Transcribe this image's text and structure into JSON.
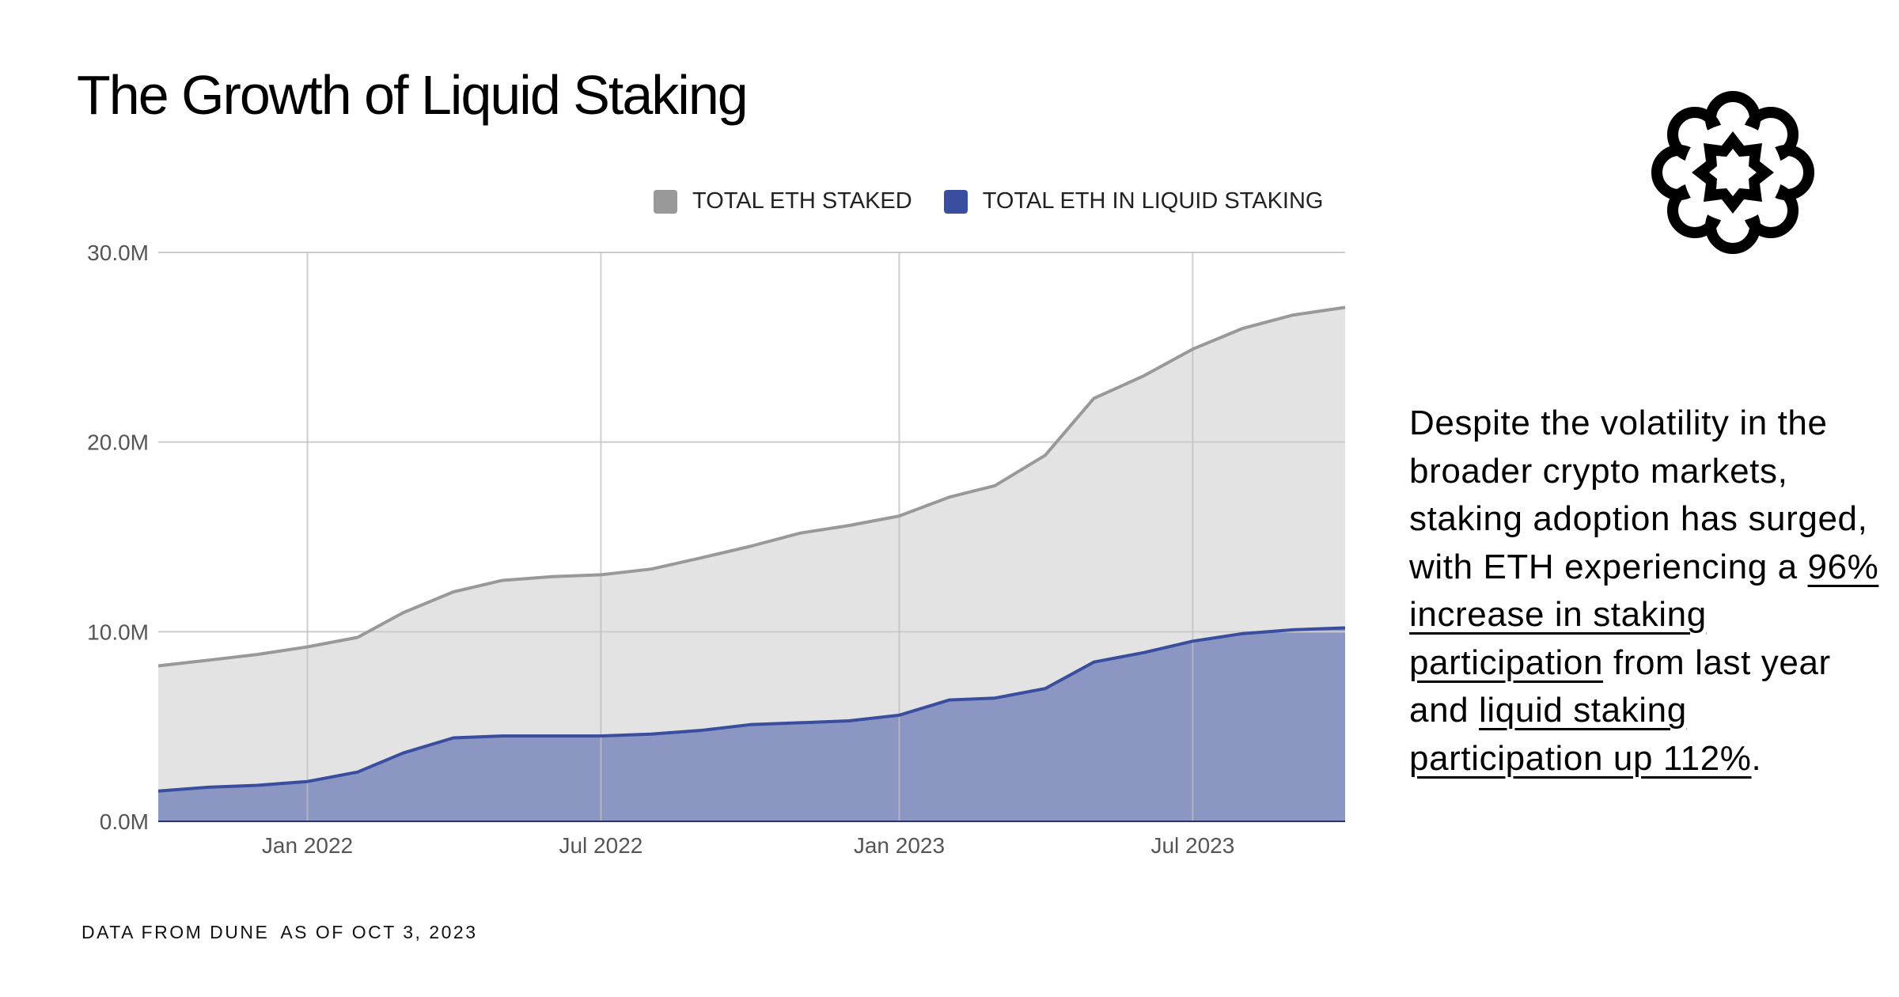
{
  "title": "The Growth of Liquid Staking",
  "logo": {
    "icon": "flower-star-logo-icon"
  },
  "description": {
    "intro": "Despite the volatility in the broader crypto markets, staking adoption has surged, with ETH experiencing a ",
    "link1": "96% increase in staking participation",
    "middle": " from last year and ",
    "link2": "liquid staking participation up 112%",
    "end": "."
  },
  "footnote": {
    "source": "DATA FROM DUNE",
    "date": "AS OF OCT 3, 2023"
  },
  "chart_data": {
    "type": "area",
    "title": "",
    "xlabel": "",
    "ylabel": "",
    "ylim": [
      0,
      30000000
    ],
    "yticks": [
      0,
      10000000,
      20000000,
      30000000
    ],
    "ytick_labels": [
      "0.0M",
      "10.0M",
      "20.0M",
      "30.0M"
    ],
    "xticks": [
      "2022-01-01",
      "2022-07-01",
      "2023-01-01",
      "2023-07-01"
    ],
    "xtick_labels": [
      "Jan 2022",
      "Jul 2022",
      "Jan 2023",
      "Jul 2023"
    ],
    "xlim": [
      "2021-10-01",
      "2023-10-03"
    ],
    "grid": true,
    "legend_position": "top-right",
    "x": [
      "2021-10-01",
      "2021-11-01",
      "2021-12-01",
      "2022-01-01",
      "2022-02-01",
      "2022-03-01",
      "2022-04-01",
      "2022-05-01",
      "2022-06-01",
      "2022-07-01",
      "2022-08-01",
      "2022-09-01",
      "2022-10-01",
      "2022-11-01",
      "2022-12-01",
      "2023-01-01",
      "2023-02-01",
      "2023-03-01",
      "2023-04-01",
      "2023-05-01",
      "2023-06-01",
      "2023-07-01",
      "2023-08-01",
      "2023-09-01",
      "2023-10-03"
    ],
    "series": [
      {
        "name": "TOTAL ETH STAKED",
        "color": "#999999",
        "fill": "#e3e3e3",
        "values": [
          8200000,
          8500000,
          8800000,
          9200000,
          9700000,
          11000000,
          12100000,
          12700000,
          12900000,
          13000000,
          13300000,
          13900000,
          14500000,
          15200000,
          15600000,
          16100000,
          17100000,
          17700000,
          19300000,
          22300000,
          23500000,
          24900000,
          26000000,
          26700000,
          27100000
        ]
      },
      {
        "name": "TOTAL ETH IN LIQUID STAKING",
        "color": "#3a4ea0",
        "fill": "#8c96c2",
        "values": [
          1600000,
          1800000,
          1900000,
          2100000,
          2600000,
          3600000,
          4400000,
          4500000,
          4500000,
          4500000,
          4600000,
          4800000,
          5100000,
          5200000,
          5300000,
          5600000,
          6400000,
          6500000,
          7000000,
          8400000,
          8900000,
          9500000,
          9900000,
          10100000,
          10200000
        ]
      }
    ]
  }
}
